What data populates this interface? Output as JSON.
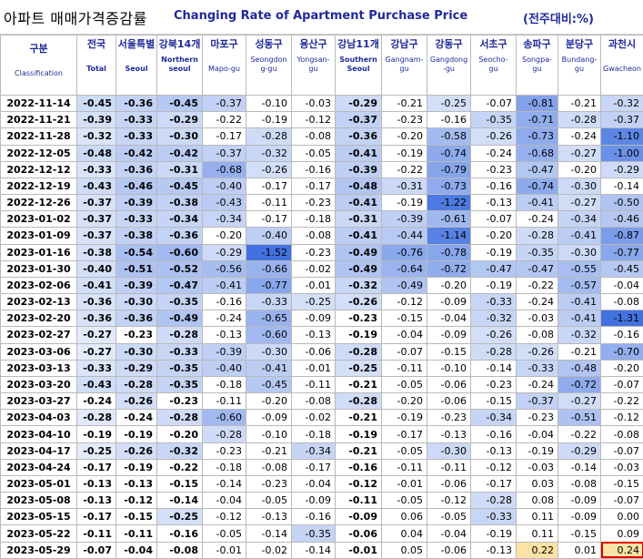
{
  "title": {
    "korean": "아파트 매매가격증감률",
    "english": "Changing Rate of Apartment Purchase Price",
    "unit": "(전주대비:%)"
  },
  "colors": {
    "header_text": "#1f2a9a",
    "positive_fill": "#fbe3a6",
    "highlight_border": "#e00000"
  },
  "columns": [
    {
      "ko": "구분",
      "en": "Classification",
      "bold": false
    },
    {
      "ko": "전국",
      "en": "Total",
      "bold": true
    },
    {
      "ko": "서울특별",
      "en": "Seoul",
      "bold": true
    },
    {
      "ko": "강북14개",
      "en": "Northern seoul",
      "bold": true
    },
    {
      "ko": "마포구",
      "en": "Mapo-gu",
      "bold": false
    },
    {
      "ko": "성동구",
      "en": "Seongdon g-gu",
      "bold": false
    },
    {
      "ko": "용산구",
      "en": "Yongsan-gu",
      "bold": false
    },
    {
      "ko": "강남11개",
      "en": "Southern Seoul",
      "bold": true
    },
    {
      "ko": "강남구",
      "en": "Gangnam-gu",
      "bold": false
    },
    {
      "ko": "강동구",
      "en": "Gangdong -gu",
      "bold": false
    },
    {
      "ko": "서초구",
      "en": "Seocho-gu",
      "bold": false
    },
    {
      "ko": "송파구",
      "en": "Songpa-gu",
      "bold": false
    },
    {
      "ko": "분당구",
      "en": "Bundang-gu",
      "bold": false
    },
    {
      "ko": "과천시",
      "en": "Gwacheon",
      "bold": false
    }
  ],
  "rows": [
    {
      "date": "2022-11-14",
      "values": [
        "-0.45",
        "-0.36",
        "-0.45",
        "-0.37",
        "-0.10",
        "-0.03",
        "-0.29",
        "-0.21",
        "-0.25",
        "-0.07",
        "-0.81",
        "-0.21",
        "-0.32"
      ]
    },
    {
      "date": "2022-11-21",
      "values": [
        "-0.39",
        "-0.33",
        "-0.29",
        "-0.22",
        "-0.19",
        "-0.12",
        "-0.37",
        "-0.23",
        "-0.16",
        "-0.35",
        "-0.71",
        "-0.28",
        "-0.37"
      ]
    },
    {
      "date": "2022-11-28",
      "values": [
        "-0.32",
        "-0.33",
        "-0.30",
        "-0.17",
        "-0.28",
        "-0.08",
        "-0.36",
        "-0.20",
        "-0.58",
        "-0.26",
        "-0.73",
        "-0.24",
        "-1.10"
      ]
    },
    {
      "date": "2022-12-05",
      "values": [
        "-0.48",
        "-0.42",
        "-0.42",
        "-0.37",
        "-0.32",
        "-0.05",
        "-0.41",
        "-0.19",
        "-0.74",
        "-0.24",
        "-0.68",
        "-0.27",
        "-1.00"
      ]
    },
    {
      "date": "2022-12-12",
      "values": [
        "-0.33",
        "-0.36",
        "-0.31",
        "-0.68",
        "-0.26",
        "-0.16",
        "-0.39",
        "-0.22",
        "-0.79",
        "-0.23",
        "-0.47",
        "-0.20",
        "-0.29"
      ]
    },
    {
      "date": "2022-12-19",
      "values": [
        "-0.43",
        "-0.46",
        "-0.45",
        "-0.40",
        "-0.17",
        "-0.17",
        "-0.48",
        "-0.31",
        "-0.73",
        "-0.16",
        "-0.74",
        "-0.30",
        "-0.14"
      ]
    },
    {
      "date": "2022-12-26",
      "values": [
        "-0.37",
        "-0.39",
        "-0.38",
        "-0.43",
        "-0.11",
        "-0.23",
        "-0.41",
        "-0.19",
        "-1.22",
        "-0.13",
        "-0.41",
        "-0.27",
        "-0.50"
      ]
    },
    {
      "date": "2023-01-02",
      "values": [
        "-0.37",
        "-0.33",
        "-0.34",
        "-0.34",
        "-0.17",
        "-0.18",
        "-0.31",
        "-0.39",
        "-0.61",
        "-0.07",
        "-0.24",
        "-0.34",
        "-0.46"
      ]
    },
    {
      "date": "2023-01-09",
      "values": [
        "-0.37",
        "-0.38",
        "-0.36",
        "-0.20",
        "-0.40",
        "-0.08",
        "-0.41",
        "-0.44",
        "-1.14",
        "-0.20",
        "-0.28",
        "-0.41",
        "-0.87"
      ]
    },
    {
      "date": "2023-01-16",
      "values": [
        "-0.38",
        "-0.54",
        "-0.60",
        "-0.29",
        "-1.52",
        "-0.23",
        "-0.49",
        "-0.76",
        "-0.78",
        "-0.19",
        "-0.35",
        "-0.30",
        "-0.77"
      ]
    },
    {
      "date": "2023-01-30",
      "values": [
        "-0.40",
        "-0.51",
        "-0.52",
        "-0.56",
        "-0.66",
        "-0.02",
        "-0.49",
        "-0.64",
        "-0.72",
        "-0.47",
        "-0.47",
        "-0.55",
        "-0.45"
      ]
    },
    {
      "date": "2023-02-06",
      "values": [
        "-0.41",
        "-0.39",
        "-0.47",
        "-0.41",
        "-0.77",
        "-0.01",
        "-0.32",
        "-0.49",
        "-0.20",
        "-0.19",
        "-0.22",
        "-0.57",
        "-0.04"
      ]
    },
    {
      "date": "2023-02-13",
      "values": [
        "-0.36",
        "-0.30",
        "-0.35",
        "-0.16",
        "-0.33",
        "-0.25",
        "-0.26",
        "-0.12",
        "-0.09",
        "-0.33",
        "-0.24",
        "-0.41",
        "-0.08"
      ]
    },
    {
      "date": "2023-02-20",
      "values": [
        "-0.36",
        "-0.36",
        "-0.49",
        "-0.24",
        "-0.65",
        "-0.09",
        "-0.23",
        "-0.15",
        "-0.04",
        "-0.32",
        "-0.03",
        "-0.41",
        "-1.31"
      ]
    },
    {
      "date": "2023-02-27",
      "values": [
        "-0.27",
        "-0.23",
        "-0.28",
        "-0.13",
        "-0.60",
        "-0.13",
        "-0.19",
        "-0.04",
        "-0.09",
        "-0.26",
        "-0.08",
        "-0.32",
        "-0.16"
      ]
    },
    {
      "date": "2023-03-06",
      "values": [
        "-0.27",
        "-0.30",
        "-0.33",
        "-0.39",
        "-0.30",
        "-0.06",
        "-0.28",
        "-0.07",
        "-0.15",
        "-0.28",
        "-0.26",
        "-0.21",
        "-0.70"
      ]
    },
    {
      "date": "2023-03-13",
      "values": [
        "-0.33",
        "-0.29",
        "-0.35",
        "-0.40",
        "-0.41",
        "-0.01",
        "-0.25",
        "-0.11",
        "-0.10",
        "-0.14",
        "-0.33",
        "-0.48",
        "-0.20"
      ]
    },
    {
      "date": "2023-03-20",
      "values": [
        "-0.43",
        "-0.28",
        "-0.35",
        "-0.18",
        "-0.45",
        "-0.11",
        "-0.21",
        "-0.05",
        "-0.06",
        "-0.23",
        "-0.24",
        "-0.72",
        "-0.07"
      ]
    },
    {
      "date": "2023-03-27",
      "values": [
        "-0.24",
        "-0.26",
        "-0.23",
        "-0.11",
        "-0.20",
        "-0.08",
        "-0.28",
        "-0.20",
        "-0.06",
        "-0.15",
        "-0.37",
        "-0.27",
        "-0.22"
      ]
    },
    {
      "date": "2023-04-03",
      "values": [
        "-0.28",
        "-0.24",
        "-0.28",
        "-0.60",
        "-0.09",
        "-0.02",
        "-0.21",
        "-0.19",
        "-0.23",
        "-0.34",
        "-0.23",
        "-0.51",
        "-0.12"
      ]
    },
    {
      "date": "2023-04-10",
      "values": [
        "-0.19",
        "-0.19",
        "-0.20",
        "-0.28",
        "-0.10",
        "-0.18",
        "-0.19",
        "-0.17",
        "-0.13",
        "-0.16",
        "-0.04",
        "-0.22",
        "-0.08"
      ]
    },
    {
      "date": "2023-04-17",
      "values": [
        "-0.25",
        "-0.26",
        "-0.32",
        "-0.23",
        "-0.21",
        "-0.34",
        "-0.21",
        "-0.05",
        "-0.30",
        "-0.13",
        "-0.19",
        "-0.29",
        "-0.07"
      ]
    },
    {
      "date": "2023-04-24",
      "values": [
        "-0.17",
        "-0.19",
        "-0.22",
        "-0.18",
        "-0.08",
        "-0.17",
        "-0.16",
        "-0.11",
        "-0.11",
        "-0.12",
        "-0.03",
        "-0.14",
        "-0.03"
      ]
    },
    {
      "date": "2023-05-01",
      "values": [
        "-0.13",
        "-0.13",
        "-0.15",
        "-0.14",
        "-0.23",
        "-0.04",
        "-0.12",
        "-0.01",
        "-0.06",
        "-0.17",
        "0.03",
        "-0.08",
        "-0.15"
      ]
    },
    {
      "date": "2023-05-08",
      "values": [
        "-0.13",
        "-0.12",
        "-0.14",
        "-0.04",
        "-0.05",
        "-0.09",
        "-0.11",
        "-0.05",
        "-0.12",
        "-0.28",
        "0.08",
        "-0.09",
        "-0.07"
      ]
    },
    {
      "date": "2023-05-15",
      "values": [
        "-0.17",
        "-0.15",
        "-0.25",
        "-0.12",
        "-0.13",
        "-0.16",
        "-0.09",
        "0.06",
        "-0.05",
        "-0.33",
        "0.11",
        "-0.09",
        "0.00"
      ]
    },
    {
      "date": "2023-05-22",
      "values": [
        "-0.11",
        "-0.11",
        "-0.16",
        "-0.05",
        "-0.14",
        "-0.35",
        "-0.06",
        "0.04",
        "-0.04",
        "-0.19",
        "0.11",
        "-0.15",
        "0.09"
      ]
    },
    {
      "date": "2023-05-29",
      "values": [
        "-0.07",
        "-0.04",
        "-0.08",
        "-0.01",
        "-0.02",
        "-0.14",
        "-0.01",
        "0.05",
        "-0.06",
        "-0.13",
        "0.22",
        "0.01",
        "0.24"
      ]
    }
  ],
  "highlighted_cell": {
    "row": "2023-05-29",
    "column": "과천시"
  }
}
